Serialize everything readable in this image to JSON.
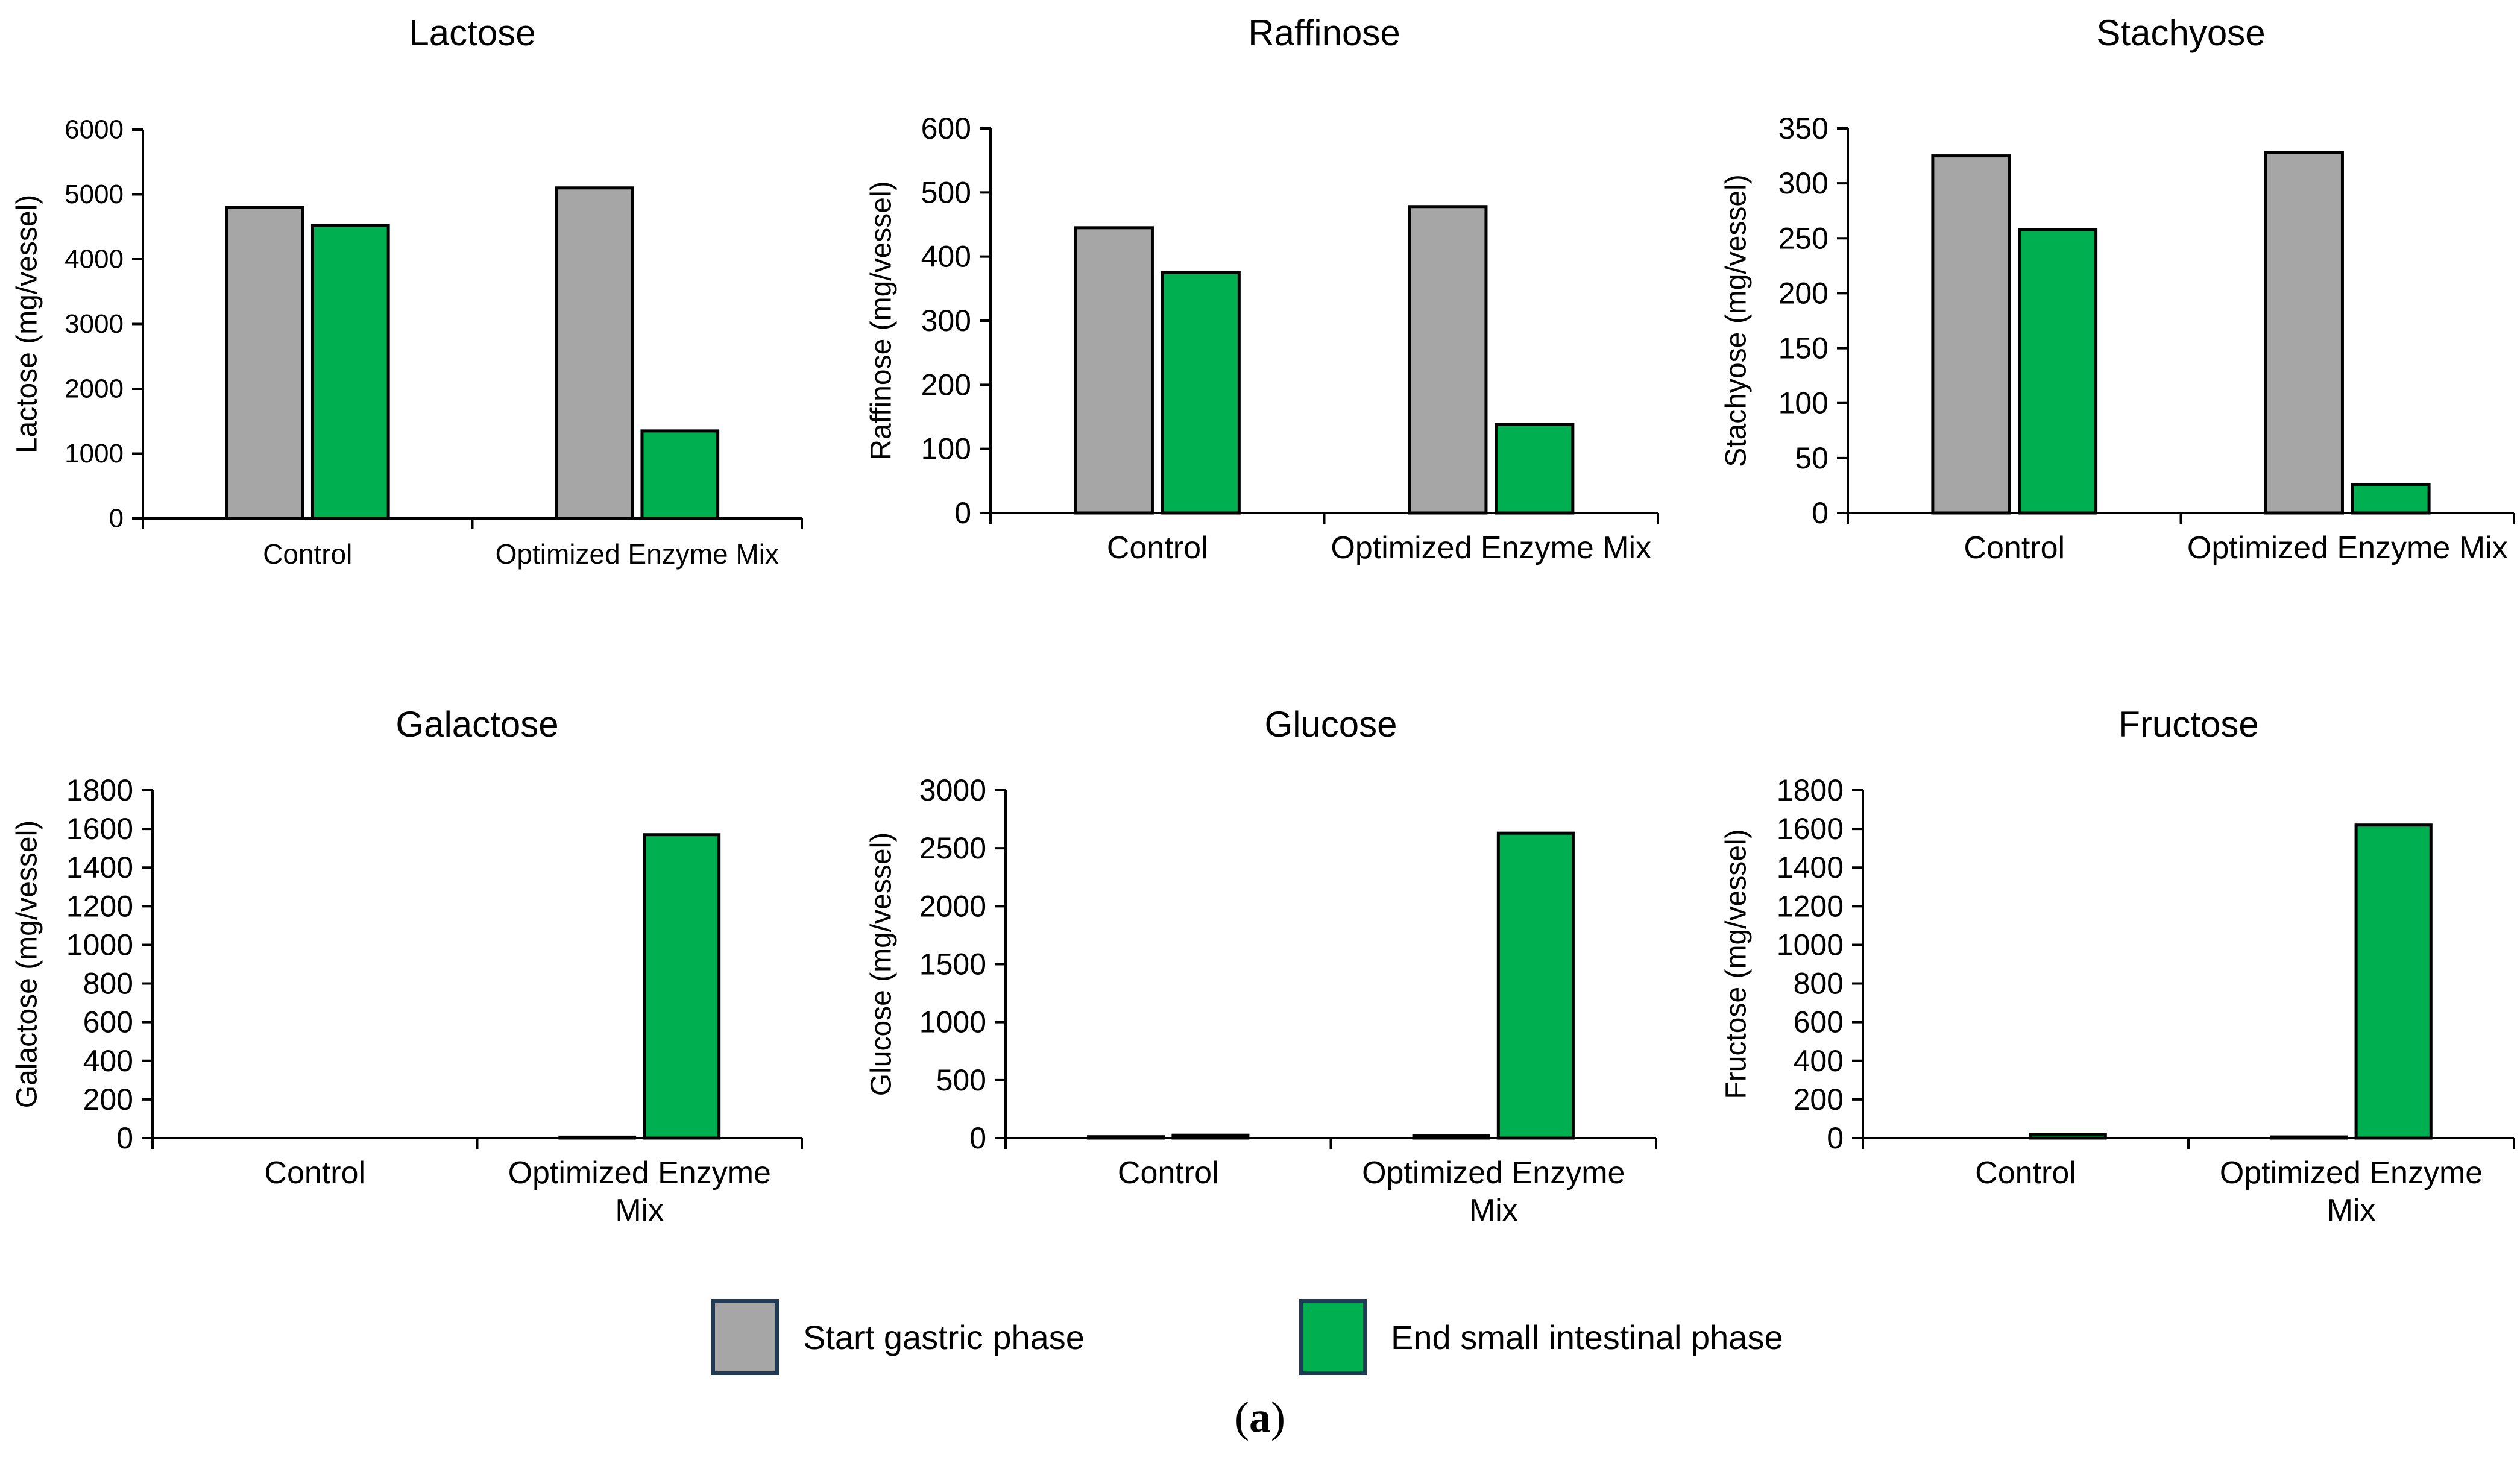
{
  "legend": {
    "start_label": "Start gastric phase",
    "end_label": "End small intestinal phase"
  },
  "caption": {
    "open": "(",
    "letter": "a",
    "close": ")"
  },
  "colors": {
    "start": "#a6a6a6",
    "end": "#00b050",
    "outline": "#000000",
    "legend_border": "#1f3b57"
  },
  "chart_data": [
    {
      "type": "bar",
      "title": "Lactose",
      "ylabel": "Lactose (mg/vessel)",
      "xlabel": "",
      "categories": [
        [
          "Control"
        ],
        [
          "Optimized Enzyme Mix"
        ]
      ],
      "ylim": [
        0,
        6000
      ],
      "ticks": [
        0,
        1000,
        2000,
        3000,
        4000,
        5000,
        6000
      ],
      "series": [
        {
          "name": "Start gastric phase",
          "values": [
            4800,
            5100
          ]
        },
        {
          "name": "End small intestinal phase",
          "values": [
            4520,
            1350
          ]
        }
      ]
    },
    {
      "type": "bar",
      "title": "Raffinose",
      "ylabel": "Raffinose (mg/vessel)",
      "xlabel": "",
      "categories": [
        [
          "Control"
        ],
        [
          "Optimized Enzyme Mix"
        ]
      ],
      "ylim": [
        0,
        600
      ],
      "ticks": [
        0,
        100,
        200,
        300,
        400,
        500,
        600
      ],
      "series": [
        {
          "name": "Start gastric phase",
          "values": [
            445,
            478
          ]
        },
        {
          "name": "End small intestinal phase",
          "values": [
            375,
            138
          ]
        }
      ]
    },
    {
      "type": "bar",
      "title": "Stachyose",
      "ylabel": "Stachyose (mg/vessel)",
      "xlabel": "",
      "categories": [
        [
          "Control"
        ],
        [
          "Optimized Enzyme Mix"
        ]
      ],
      "ylim": [
        0,
        350
      ],
      "ticks": [
        0,
        50,
        100,
        150,
        200,
        250,
        300,
        350
      ],
      "series": [
        {
          "name": "Start gastric phase",
          "values": [
            325,
            328
          ]
        },
        {
          "name": "End small intestinal phase",
          "values": [
            258,
            26
          ]
        }
      ]
    },
    {
      "type": "bar",
      "title": "Galactose",
      "ylabel": "Galactose (mg/vessel)",
      "xlabel": "",
      "categories": [
        [
          "Control"
        ],
        [
          "Optimized Enzyme",
          "Mix"
        ]
      ],
      "ylim": [
        0,
        1800
      ],
      "ticks": [
        0,
        200,
        400,
        600,
        800,
        1000,
        1200,
        1400,
        1600,
        1800
      ],
      "series": [
        {
          "name": "Start gastric phase",
          "values": [
            0,
            5
          ]
        },
        {
          "name": "End small intestinal phase",
          "values": [
            0,
            1570
          ]
        }
      ]
    },
    {
      "type": "bar",
      "title": "Glucose",
      "ylabel": "Glucose (mg/vessel)",
      "xlabel": "",
      "categories": [
        [
          "Control"
        ],
        [
          "Optimized Enzyme",
          "Mix"
        ]
      ],
      "ylim": [
        0,
        3000
      ],
      "ticks": [
        0,
        500,
        1000,
        1500,
        2000,
        2500,
        3000
      ],
      "series": [
        {
          "name": "Start gastric phase",
          "values": [
            12,
            18
          ]
        },
        {
          "name": "End small intestinal phase",
          "values": [
            25,
            2630
          ]
        }
      ]
    },
    {
      "type": "bar",
      "title": "Fructose",
      "ylabel": "Fructose (mg/vessel)",
      "xlabel": "",
      "categories": [
        [
          "Control"
        ],
        [
          "Optimized Enzyme",
          "Mix"
        ]
      ],
      "ylim": [
        0,
        1800
      ],
      "ticks": [
        0,
        200,
        400,
        600,
        800,
        1000,
        1200,
        1400,
        1600,
        1800
      ],
      "series": [
        {
          "name": "Start gastric phase",
          "values": [
            0,
            6
          ]
        },
        {
          "name": "End small intestinal phase",
          "values": [
            20,
            1620
          ]
        }
      ]
    }
  ]
}
